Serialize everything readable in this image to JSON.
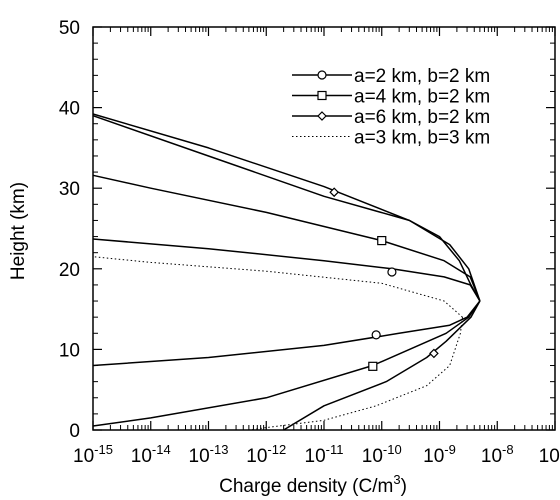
{
  "chart_data": {
    "type": "line",
    "xlabel": "Charge density (C/m",
    "xlabel_sup": "3",
    "xlabel_suffix": ")",
    "ylabel": "Height (km)",
    "x_scale": "log",
    "xlim": [
      1e-15,
      1e-07
    ],
    "ylim": [
      0,
      50
    ],
    "x_ticks": [
      {
        "base": "10",
        "exp": "-15",
        "value": 1e-15
      },
      {
        "base": "10",
        "exp": "-14",
        "value": 1e-14
      },
      {
        "base": "10",
        "exp": "-13",
        "value": 1e-13
      },
      {
        "base": "10",
        "exp": "-12",
        "value": 1e-12
      },
      {
        "base": "10",
        "exp": "-11",
        "value": 1e-11
      },
      {
        "base": "10",
        "exp": "-10",
        "value": 1e-10
      },
      {
        "base": "10",
        "exp": "-9",
        "value": 1e-09
      },
      {
        "base": "10",
        "exp": "-8",
        "value": 1e-08
      },
      {
        "base": "10",
        "exp": "-7",
        "value": 1e-07
      }
    ],
    "y_ticks": [
      0,
      10,
      20,
      30,
      40,
      50
    ],
    "grid": false,
    "legend_position": "top-right",
    "series": [
      {
        "name": "a=2 km, b=2 km",
        "line_style": "solid",
        "marker": "circle",
        "points": [
          [
            5e-09,
            16
          ],
          [
            3.4e-09,
            18
          ],
          [
            1.2e-09,
            19
          ],
          [
            1.5e-10,
            20
          ],
          [
            1e-11,
            21
          ],
          [
            1e-13,
            22.5
          ],
          [
            1e-15,
            23.7
          ],
          [
            5e-09,
            16
          ],
          [
            3e-09,
            14
          ],
          [
            1.5e-09,
            13
          ],
          [
            2e-10,
            12
          ],
          [
            1e-11,
            10.5
          ],
          [
            1e-13,
            9
          ],
          [
            1e-15,
            8
          ]
        ],
        "marker_points": [
          [
            1.5e-10,
            19.6
          ],
          [
            8e-11,
            11.8
          ]
        ]
      },
      {
        "name": "a=4 km, b=2 km",
        "line_style": "solid",
        "marker": "square",
        "points": [
          [
            5e-09,
            16
          ],
          [
            3.4e-09,
            19
          ],
          [
            1.2e-09,
            21
          ],
          [
            1e-10,
            23.5
          ],
          [
            1e-12,
            27
          ],
          [
            1e-14,
            30
          ],
          [
            1e-15,
            31.6
          ],
          [
            5e-09,
            16
          ],
          [
            3.2e-09,
            14
          ],
          [
            1.3e-09,
            12
          ],
          [
            7e-11,
            8
          ],
          [
            1e-12,
            4
          ],
          [
            1e-14,
            1.5
          ],
          [
            1e-15,
            0.5
          ]
        ],
        "marker_points": [
          [
            1e-10,
            23.5
          ],
          [
            7e-11,
            7.9
          ]
        ]
      },
      {
        "name": "a=6 km, b=2 km",
        "line_style": "solid",
        "marker": "diamond",
        "points": [
          [
            5e-09,
            16
          ],
          [
            3.2e-09,
            20
          ],
          [
            1.5e-09,
            23
          ],
          [
            3e-10,
            26
          ],
          [
            1e-11,
            30.2
          ],
          [
            1e-13,
            35
          ],
          [
            1e-15,
            39.2
          ],
          [
            5e-09,
            16
          ],
          [
            3.5e-09,
            14
          ],
          [
            1.3e-09,
            11
          ],
          [
            6e-10,
            9
          ],
          [
            1.2e-10,
            6
          ],
          [
            1e-11,
            3
          ],
          [
            2e-12,
            0
          ]
        ],
        "marker_points": [
          [
            1.5e-11,
            29.5
          ],
          [
            8e-10,
            9.5
          ]
        ]
      },
      {
        "name": "",
        "line_style": "solid",
        "marker": "none",
        "points": [
          [
            5e-09,
            16
          ],
          [
            3.5e-09,
            18
          ],
          [
            2.2e-09,
            21
          ],
          [
            1e-09,
            24
          ],
          [
            3e-10,
            26
          ],
          [
            1e-11,
            29
          ],
          [
            1e-13,
            34
          ],
          [
            1e-15,
            39
          ]
        ]
      },
      {
        "name": "a=3 km, b=3 km",
        "line_style": "dotted",
        "marker": "none",
        "points": [
          [
            2.5e-09,
            14
          ],
          [
            1.2e-09,
            16
          ],
          [
            1e-10,
            18.2
          ],
          [
            1e-12,
            19.7
          ],
          [
            1e-14,
            20.8
          ],
          [
            1e-15,
            21.5
          ],
          [
            2.5e-09,
            14
          ],
          [
            2.3e-09,
            12
          ],
          [
            1.5e-09,
            8
          ],
          [
            6e-10,
            5.5
          ],
          [
            8e-11,
            3
          ],
          [
            1e-11,
            1.2
          ],
          [
            1e-12,
            0.3
          ],
          [
            5e-13,
            0
          ]
        ]
      }
    ]
  }
}
